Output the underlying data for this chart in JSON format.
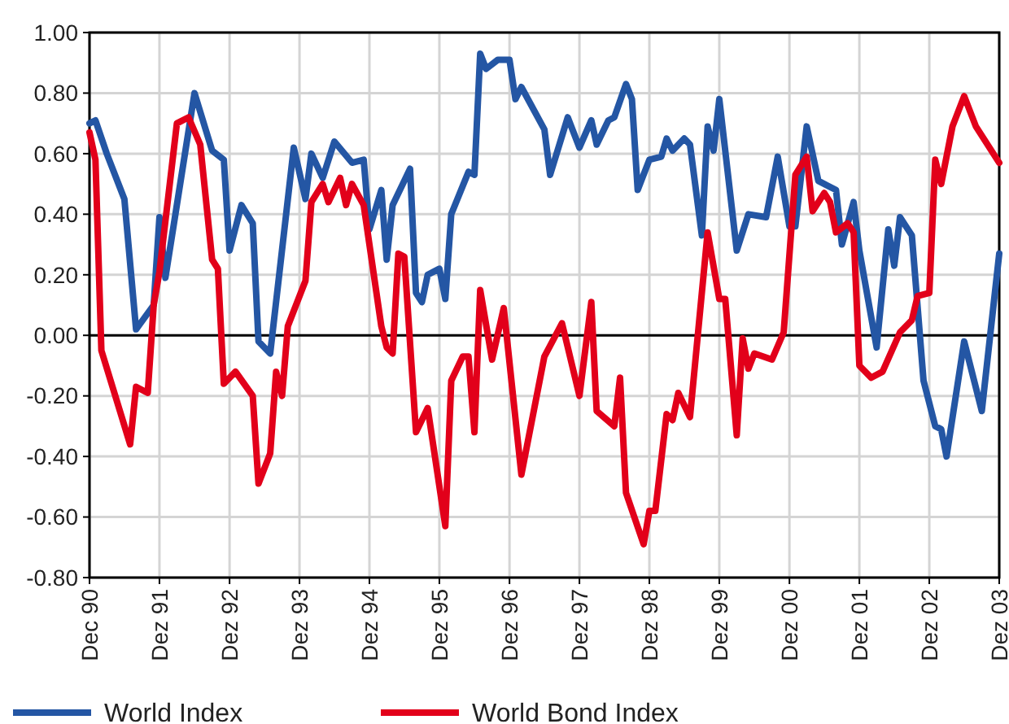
{
  "chart_data": {
    "type": "line",
    "xlim": [
      "1990-12",
      "2003-12"
    ],
    "xticks": [
      {
        "value": "1990-12",
        "label": "Dec 90"
      },
      {
        "value": "1991-12",
        "label": "Dez 91"
      },
      {
        "value": "1992-12",
        "label": "Dez 92"
      },
      {
        "value": "1993-12",
        "label": "Dez 93"
      },
      {
        "value": "1994-12",
        "label": "Dez 94"
      },
      {
        "value": "1995-12",
        "label": "Dez 95"
      },
      {
        "value": "1996-12",
        "label": "Dez 96"
      },
      {
        "value": "1997-12",
        "label": "Dez 97"
      },
      {
        "value": "1998-12",
        "label": "Dez 98"
      },
      {
        "value": "1999-12",
        "label": "Dez 99"
      },
      {
        "value": "2000-12",
        "label": "Dez 00"
      },
      {
        "value": "2001-12",
        "label": "Dez 01"
      },
      {
        "value": "2002-12",
        "label": "Dez 02"
      },
      {
        "value": "2003-12",
        "label": "Dez 03"
      }
    ],
    "ylim": [
      -0.8,
      1
    ],
    "yticks": [
      {
        "value": 1,
        "label": "1.00"
      },
      {
        "value": 0.8,
        "label": "0.80"
      },
      {
        "value": 0.6,
        "label": "0.60"
      },
      {
        "value": 0.4,
        "label": "0.40"
      },
      {
        "value": 0.2,
        "label": "0.20"
      },
      {
        "value": 0,
        "label": "0.00"
      },
      {
        "value": -0.2,
        "label": "-0.20"
      },
      {
        "value": -0.4,
        "label": "-0.40"
      },
      {
        "value": -0.6,
        "label": "-0.60"
      },
      {
        "value": -0.8,
        "label": "-0.80"
      }
    ],
    "grid": true,
    "legend": "bottom",
    "marker": "none",
    "line_style": "solid",
    "ref_lines": [
      {
        "axis": "y",
        "value": 0,
        "color": "#000000"
      }
    ],
    "series": [
      {
        "name": "World Index",
        "color": "#2456a4",
        "x": [
          "1990-12",
          "1991-01",
          "1991-03",
          "1991-06",
          "1991-08",
          "1991-11",
          "1991-12",
          "1992-01",
          "1992-06",
          "1992-09",
          "1992-11",
          "1992-12",
          "1993-02",
          "1993-04",
          "1993-05",
          "1993-07",
          "1993-11",
          "1994-01",
          "1994-02",
          "1994-04",
          "1994-06",
          "1994-09",
          "1994-11",
          "1994-12",
          "1995-02",
          "1995-03",
          "1995-04",
          "1995-07",
          "1995-08",
          "1995-09",
          "1995-10",
          "1995-12",
          "1996-01",
          "1996-02",
          "1996-05",
          "1996-06",
          "1996-07",
          "1996-08",
          "1996-10",
          "1996-12",
          "1997-01",
          "1997-02",
          "1997-06",
          "1997-07",
          "1997-10",
          "1997-12",
          "1998-02",
          "1998-03",
          "1998-05",
          "1998-06",
          "1998-08",
          "1998-09",
          "1998-10",
          "1998-12",
          "1999-02",
          "1999-03",
          "1999-04",
          "1999-06",
          "1999-07",
          "1999-09",
          "1999-10",
          "1999-11",
          "1999-12",
          "2000-03",
          "2000-05",
          "2000-08",
          "2000-10",
          "2000-12",
          "2001-01",
          "2001-03",
          "2001-05",
          "2001-08",
          "2001-09",
          "2001-11",
          "2001-12",
          "2002-03",
          "2002-05",
          "2002-06",
          "2002-07",
          "2002-09",
          "2002-11",
          "2003-01",
          "2003-02",
          "2003-03",
          "2003-06",
          "2003-09",
          "2003-12"
        ],
        "values": [
          0.7,
          0.71,
          0.6,
          0.45,
          0.02,
          0.1,
          0.39,
          0.19,
          0.8,
          0.61,
          0.58,
          0.28,
          0.43,
          0.37,
          -0.02,
          -0.06,
          0.62,
          0.45,
          0.6,
          0.52,
          0.64,
          0.57,
          0.58,
          0.35,
          0.48,
          0.25,
          0.43,
          0.55,
          0.14,
          0.11,
          0.2,
          0.22,
          0.12,
          0.4,
          0.54,
          0.53,
          0.93,
          0.88,
          0.91,
          0.91,
          0.78,
          0.82,
          0.68,
          0.53,
          0.72,
          0.62,
          0.71,
          0.63,
          0.71,
          0.72,
          0.83,
          0.78,
          0.48,
          0.58,
          0.59,
          0.65,
          0.61,
          0.65,
          0.63,
          0.33,
          0.69,
          0.61,
          0.78,
          0.28,
          0.4,
          0.39,
          0.59,
          0.36,
          0.36,
          0.69,
          0.51,
          0.48,
          0.3,
          0.44,
          0.28,
          -0.04,
          0.35,
          0.23,
          0.39,
          0.33,
          -0.15,
          -0.3,
          -0.31,
          -0.4,
          -0.02,
          -0.25,
          0.27
        ]
      },
      {
        "name": "World Bond Index",
        "color": "#e2001a",
        "x": [
          "1990-12",
          "1991-01",
          "1991-02",
          "1991-07",
          "1991-08",
          "1991-10",
          "1991-11",
          "1991-12",
          "1992-03",
          "1992-05",
          "1992-07",
          "1992-09",
          "1992-10",
          "1992-11",
          "1993-01",
          "1993-04",
          "1993-05",
          "1993-07",
          "1993-08",
          "1993-09",
          "1993-10",
          "1994-01",
          "1994-02",
          "1994-04",
          "1994-05",
          "1994-07",
          "1994-08",
          "1994-09",
          "1994-11",
          "1995-02",
          "1995-03",
          "1995-04",
          "1995-05",
          "1995-06",
          "1995-08",
          "1995-10",
          "1996-01",
          "1996-02",
          "1996-04",
          "1996-05",
          "1996-06",
          "1996-07",
          "1996-09",
          "1996-11",
          "1997-02",
          "1997-06",
          "1997-09",
          "1997-12",
          "1998-02",
          "1998-03",
          "1998-06",
          "1998-07",
          "1998-08",
          "1998-11",
          "1998-12",
          "1999-01",
          "1999-03",
          "1999-04",
          "1999-05",
          "1999-07",
          "1999-10",
          "1999-12",
          "2000-01",
          "2000-03",
          "2000-04",
          "2000-05",
          "2000-06",
          "2000-09",
          "2000-11",
          "2001-01",
          "2001-03",
          "2001-04",
          "2001-06",
          "2001-07",
          "2001-08",
          "2001-10",
          "2001-11",
          "2001-12",
          "2002-02",
          "2002-04",
          "2002-07",
          "2002-09",
          "2002-10",
          "2002-12",
          "2003-01",
          "2003-02",
          "2003-04",
          "2003-06",
          "2003-08",
          "2003-12"
        ],
        "values": [
          0.67,
          0.58,
          -0.05,
          -0.36,
          -0.17,
          -0.19,
          0.1,
          0.21,
          0.7,
          0.72,
          0.63,
          0.25,
          0.22,
          -0.16,
          -0.12,
          -0.2,
          -0.49,
          -0.39,
          -0.12,
          -0.2,
          0.03,
          0.18,
          0.44,
          0.5,
          0.44,
          0.52,
          0.43,
          0.5,
          0.43,
          0.03,
          -0.04,
          -0.06,
          0.27,
          0.26,
          -0.32,
          -0.24,
          -0.63,
          -0.15,
          -0.07,
          -0.07,
          -0.32,
          0.15,
          -0.08,
          0.09,
          -0.46,
          -0.07,
          0.04,
          -0.2,
          0.11,
          -0.25,
          -0.3,
          -0.14,
          -0.52,
          -0.69,
          -0.58,
          -0.58,
          -0.26,
          -0.28,
          -0.19,
          -0.27,
          0.34,
          0.12,
          0.12,
          -0.33,
          -0.01,
          -0.11,
          -0.06,
          -0.08,
          0.01,
          0.53,
          0.59,
          0.41,
          0.47,
          0.44,
          0.34,
          0.37,
          0.34,
          -0.1,
          -0.14,
          -0.12,
          0.01,
          0.05,
          0.13,
          0.14,
          0.58,
          0.5,
          0.69,
          0.79,
          0.69,
          0.57
        ]
      }
    ]
  }
}
